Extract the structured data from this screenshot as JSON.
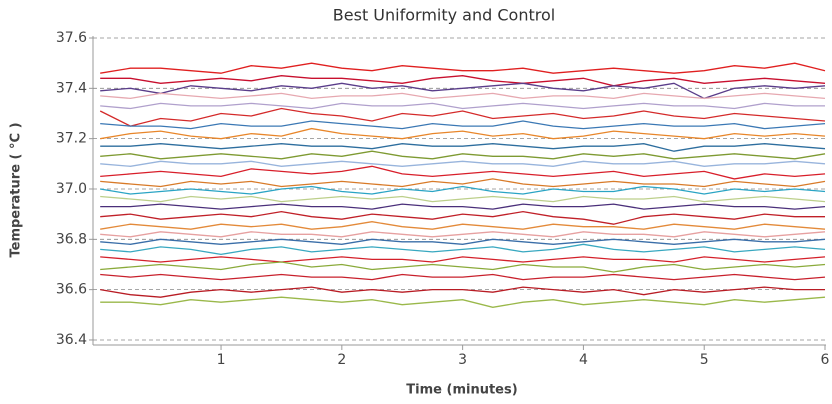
{
  "chart_data": {
    "type": "line",
    "title": "Best Uniformity and Control",
    "xlabel": "Time (minutes)",
    "ylabel": "Temperature ( °C )",
    "x": [
      0,
      0.25,
      0.5,
      0.75,
      1,
      1.25,
      1.5,
      1.75,
      2,
      2.25,
      2.5,
      2.75,
      3,
      3.25,
      3.5,
      3.75,
      4,
      4.25,
      4.5,
      4.75,
      5,
      5.25,
      5.5,
      5.75,
      6
    ],
    "xlim": [
      -0.06,
      6
    ],
    "xticks": [
      1,
      2,
      3,
      4,
      5,
      6
    ],
    "ylim": [
      36.38,
      37.6
    ],
    "yticks": [
      36.4,
      36.6,
      36.8,
      {
        "value": 37,
        "label": "37.0"
      },
      37.2,
      37.4,
      37.6
    ],
    "grid": true,
    "series": [
      {
        "color": "#e02020",
        "values": [
          37.46,
          37.48,
          37.48,
          37.47,
          37.46,
          37.49,
          37.48,
          37.5,
          37.48,
          37.47,
          37.49,
          37.48,
          37.47,
          37.47,
          37.48,
          37.46,
          37.47,
          37.48,
          37.47,
          37.46,
          37.47,
          37.49,
          37.48,
          37.5,
          37.47
        ]
      },
      {
        "color": "#c8102e",
        "values": [
          37.44,
          37.44,
          37.42,
          37.43,
          37.44,
          37.43,
          37.45,
          37.44,
          37.44,
          37.43,
          37.42,
          37.44,
          37.45,
          37.43,
          37.42,
          37.43,
          37.44,
          37.41,
          37.43,
          37.44,
          37.42,
          37.43,
          37.44,
          37.43,
          37.42
        ]
      },
      {
        "color": "#5a3d8a",
        "values": [
          37.39,
          37.4,
          37.38,
          37.41,
          37.4,
          37.39,
          37.41,
          37.4,
          37.42,
          37.4,
          37.41,
          37.39,
          37.4,
          37.41,
          37.42,
          37.4,
          37.39,
          37.41,
          37.4,
          37.42,
          37.36,
          37.4,
          37.41,
          37.4,
          37.41
        ]
      },
      {
        "color": "#e6a8b0",
        "values": [
          37.37,
          37.36,
          37.38,
          37.37,
          37.36,
          37.37,
          37.38,
          37.36,
          37.37,
          37.37,
          37.38,
          37.36,
          37.37,
          37.38,
          37.36,
          37.37,
          37.37,
          37.36,
          37.38,
          37.37,
          37.36,
          37.37,
          37.38,
          37.37,
          37.36
        ]
      },
      {
        "color": "#b0a0cc",
        "values": [
          37.33,
          37.32,
          37.34,
          37.33,
          37.33,
          37.34,
          37.33,
          37.32,
          37.34,
          37.33,
          37.33,
          37.34,
          37.32,
          37.33,
          37.34,
          37.33,
          37.32,
          37.33,
          37.34,
          37.33,
          37.33,
          37.32,
          37.34,
          37.33,
          37.33
        ]
      },
      {
        "color": "#d42a2a",
        "values": [
          37.31,
          37.25,
          37.28,
          37.27,
          37.3,
          37.29,
          37.32,
          37.3,
          37.29,
          37.27,
          37.3,
          37.29,
          37.31,
          37.28,
          37.29,
          37.3,
          37.28,
          37.29,
          37.31,
          37.29,
          37.28,
          37.3,
          37.29,
          37.28,
          37.27
        ]
      },
      {
        "color": "#3b78b4",
        "values": [
          37.26,
          37.25,
          37.25,
          37.24,
          37.26,
          37.25,
          37.25,
          37.27,
          37.26,
          37.25,
          37.24,
          37.26,
          37.25,
          37.25,
          37.27,
          37.25,
          37.24,
          37.25,
          37.26,
          37.25,
          37.25,
          37.26,
          37.24,
          37.25,
          37.26
        ]
      },
      {
        "color": "#e8862a",
        "values": [
          37.2,
          37.22,
          37.23,
          37.21,
          37.2,
          37.22,
          37.21,
          37.24,
          37.22,
          37.21,
          37.2,
          37.22,
          37.23,
          37.21,
          37.22,
          37.2,
          37.21,
          37.23,
          37.22,
          37.21,
          37.2,
          37.22,
          37.21,
          37.22,
          37.21
        ]
      },
      {
        "color": "#2e6e9e",
        "values": [
          37.17,
          37.17,
          37.18,
          37.17,
          37.16,
          37.17,
          37.18,
          37.17,
          37.17,
          37.16,
          37.18,
          37.17,
          37.17,
          37.18,
          37.17,
          37.16,
          37.17,
          37.17,
          37.18,
          37.15,
          37.17,
          37.17,
          37.18,
          37.17,
          37.16
        ]
      },
      {
        "color": "#7e9a32",
        "values": [
          37.13,
          37.14,
          37.12,
          37.13,
          37.14,
          37.13,
          37.12,
          37.14,
          37.13,
          37.15,
          37.13,
          37.12,
          37.14,
          37.13,
          37.13,
          37.12,
          37.14,
          37.13,
          37.14,
          37.12,
          37.13,
          37.14,
          37.13,
          37.12,
          37.14
        ]
      },
      {
        "color": "#98b4dc",
        "values": [
          37.1,
          37.09,
          37.11,
          37.1,
          37.1,
          37.11,
          37.09,
          37.1,
          37.11,
          37.1,
          37.09,
          37.1,
          37.11,
          37.1,
          37.1,
          37.09,
          37.11,
          37.1,
          37.1,
          37.11,
          37.09,
          37.1,
          37.1,
          37.11,
          37.1
        ]
      },
      {
        "color": "#d81e2a",
        "values": [
          37.05,
          37.06,
          37.07,
          37.06,
          37.05,
          37.08,
          37.07,
          37.06,
          37.07,
          37.09,
          37.06,
          37.05,
          37.06,
          37.07,
          37.06,
          37.05,
          37.06,
          37.07,
          37.05,
          37.06,
          37.07,
          37.04,
          37.06,
          37.05,
          37.06
        ]
      },
      {
        "color": "#d87a28",
        "values": [
          37.03,
          37.02,
          37.01,
          37.03,
          37.02,
          37.03,
          37.01,
          37.02,
          37.03,
          37.02,
          37.01,
          37.03,
          37.02,
          37.04,
          37.02,
          37.01,
          37.02,
          37.03,
          37.02,
          37.02,
          37.01,
          37.03,
          37.02,
          37.01,
          37.03
        ]
      },
      {
        "color": "#2aa4c4",
        "values": [
          37.0,
          36.98,
          36.99,
          37.0,
          36.99,
          36.98,
          37.0,
          37.01,
          36.99,
          36.98,
          37.0,
          36.99,
          37.01,
          36.99,
          36.98,
          37.0,
          36.99,
          36.99,
          37.01,
          37.0,
          36.98,
          37.0,
          36.99,
          37.0,
          36.99
        ]
      },
      {
        "color": "#bccf8a",
        "values": [
          36.97,
          36.96,
          36.95,
          36.97,
          36.96,
          36.97,
          36.95,
          36.96,
          36.97,
          36.96,
          36.97,
          36.95,
          36.96,
          36.97,
          36.96,
          36.95,
          36.97,
          36.96,
          36.96,
          36.97,
          36.95,
          36.96,
          36.97,
          36.96,
          36.95
        ]
      },
      {
        "color": "#4a2f7a",
        "values": [
          36.93,
          36.93,
          36.94,
          36.93,
          36.92,
          36.93,
          36.94,
          36.93,
          36.93,
          36.92,
          36.94,
          36.93,
          36.93,
          36.92,
          36.94,
          36.93,
          36.93,
          36.94,
          36.92,
          36.93,
          36.94,
          36.93,
          36.93,
          36.92,
          36.93
        ]
      },
      {
        "color": "#c02028",
        "values": [
          36.89,
          36.9,
          36.88,
          36.89,
          36.9,
          36.89,
          36.91,
          36.89,
          36.88,
          36.9,
          36.89,
          36.88,
          36.9,
          36.89,
          36.91,
          36.89,
          36.88,
          36.86,
          36.89,
          36.9,
          36.89,
          36.88,
          36.9,
          36.89,
          36.89
        ]
      },
      {
        "color": "#e38a3a",
        "values": [
          36.84,
          36.86,
          36.85,
          36.84,
          36.86,
          36.85,
          36.86,
          36.84,
          36.85,
          36.87,
          36.85,
          36.84,
          36.86,
          36.85,
          36.84,
          36.86,
          36.85,
          36.85,
          36.84,
          36.86,
          36.85,
          36.84,
          36.86,
          36.85,
          36.84
        ]
      },
      {
        "color": "#e6a0a0",
        "values": [
          36.82,
          36.81,
          36.83,
          36.82,
          36.81,
          36.83,
          36.82,
          36.82,
          36.81,
          36.83,
          36.82,
          36.81,
          36.82,
          36.83,
          36.82,
          36.81,
          36.83,
          36.82,
          36.82,
          36.81,
          36.83,
          36.82,
          36.81,
          36.82,
          36.83
        ]
      },
      {
        "color": "#3a6ea8",
        "values": [
          36.79,
          36.78,
          36.8,
          36.79,
          36.78,
          36.79,
          36.8,
          36.79,
          36.78,
          36.8,
          36.79,
          36.79,
          36.78,
          36.8,
          36.79,
          36.78,
          36.79,
          36.8,
          36.79,
          36.78,
          36.79,
          36.8,
          36.79,
          36.79,
          36.8
        ]
      },
      {
        "color": "#38a8c0",
        "values": [
          36.76,
          36.75,
          36.77,
          36.76,
          36.74,
          36.76,
          36.77,
          36.75,
          36.76,
          36.77,
          36.76,
          36.75,
          36.76,
          36.77,
          36.75,
          36.76,
          36.78,
          36.76,
          36.75,
          36.76,
          36.77,
          36.75,
          36.76,
          36.77,
          36.76
        ]
      },
      {
        "color": "#d4202a",
        "values": [
          36.73,
          36.72,
          36.71,
          36.72,
          36.73,
          36.72,
          36.71,
          36.72,
          36.73,
          36.72,
          36.72,
          36.71,
          36.73,
          36.72,
          36.71,
          36.72,
          36.73,
          36.72,
          36.72,
          36.71,
          36.73,
          36.72,
          36.71,
          36.72,
          36.73
        ]
      },
      {
        "color": "#8aaa3a",
        "values": [
          36.68,
          36.69,
          36.7,
          36.69,
          36.68,
          36.7,
          36.71,
          36.69,
          36.7,
          36.68,
          36.69,
          36.7,
          36.69,
          36.68,
          36.7,
          36.69,
          36.69,
          36.67,
          36.69,
          36.7,
          36.68,
          36.69,
          36.7,
          36.69,
          36.7
        ]
      },
      {
        "color": "#c8202c",
        "values": [
          36.66,
          36.65,
          36.66,
          36.65,
          36.64,
          36.65,
          36.66,
          36.65,
          36.65,
          36.64,
          36.66,
          36.65,
          36.65,
          36.66,
          36.64,
          36.65,
          36.65,
          36.66,
          36.65,
          36.64,
          36.65,
          36.66,
          36.65,
          36.64,
          36.65
        ]
      },
      {
        "color": "#b81c24",
        "values": [
          36.6,
          36.58,
          36.57,
          36.59,
          36.6,
          36.59,
          36.6,
          36.61,
          36.59,
          36.6,
          36.59,
          36.6,
          36.6,
          36.59,
          36.61,
          36.6,
          36.59,
          36.6,
          36.58,
          36.6,
          36.59,
          36.6,
          36.61,
          36.6,
          36.6
        ]
      },
      {
        "color": "#9ab84a",
        "values": [
          36.55,
          36.55,
          36.54,
          36.56,
          36.55,
          36.56,
          36.57,
          36.56,
          36.55,
          36.56,
          36.54,
          36.55,
          36.56,
          36.53,
          36.55,
          36.56,
          36.54,
          36.55,
          36.56,
          36.55,
          36.54,
          36.56,
          36.55,
          36.56,
          36.57
        ]
      }
    ]
  }
}
